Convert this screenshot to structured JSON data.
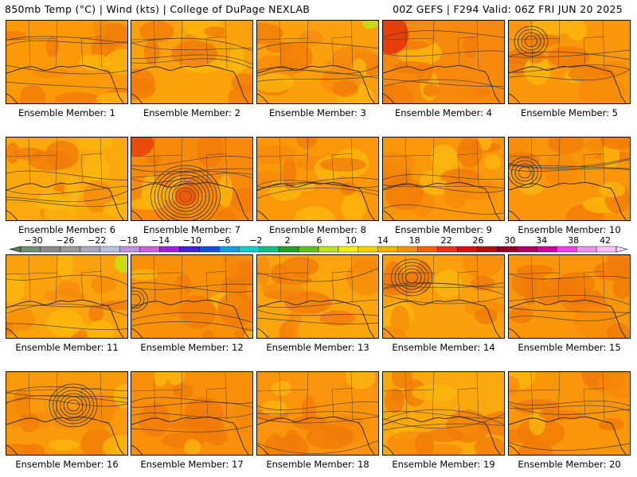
{
  "header": {
    "left": "850mb Temp (°C) | Wind (kts) | College of DuPage NEXLAB",
    "right": "00Z GEFS | F294 Valid: 06Z FRI JUN 20 2025"
  },
  "members": [
    {
      "label": "Ensemble Member: 1",
      "base": "#fb9a06",
      "low": null
    },
    {
      "label": "Ensemble Member: 2",
      "base": "#fba20a",
      "low": null
    },
    {
      "label": "Ensemble Member: 3",
      "base": "#fba00c",
      "low": null
    },
    {
      "label": "Ensemble Member: 4",
      "base": "#f78a0c",
      "low": null
    },
    {
      "label": "Ensemble Member: 5",
      "base": "#fa960a",
      "low": "north"
    },
    {
      "label": "Ensemble Member: 6",
      "base": "#fba80c",
      "low": null
    },
    {
      "label": "Ensemble Member: 7",
      "base": "#f88a0a",
      "low": "deep"
    },
    {
      "label": "Ensemble Member: 8",
      "base": "#fb9808",
      "low": null
    },
    {
      "label": "Ensemble Member: 9",
      "base": "#fa980a",
      "low": null
    },
    {
      "label": "Ensemble Member: 10",
      "base": "#fa960a",
      "low": "west"
    },
    {
      "label": "Ensemble Member: 11",
      "base": "#fba20c",
      "low": null
    },
    {
      "label": "Ensemble Member: 12",
      "base": "#f89008",
      "low": "edge"
    },
    {
      "label": "Ensemble Member: 13",
      "base": "#fba40c",
      "low": null
    },
    {
      "label": "Ensemble Member: 14",
      "base": "#fba00a",
      "low": "center"
    },
    {
      "label": "Ensemble Member: 15",
      "base": "#fa960a",
      "low": null
    },
    {
      "label": "Ensemble Member: 16",
      "base": "#fa9a0a",
      "low": "deep-west"
    },
    {
      "label": "Ensemble Member: 17",
      "base": "#f98e08",
      "low": null
    },
    {
      "label": "Ensemble Member: 18",
      "base": "#fa940a",
      "low": null
    },
    {
      "label": "Ensemble Member: 19",
      "base": "#fba80c",
      "low": null
    },
    {
      "label": "Ensemble Member: 20",
      "base": "#fa960a",
      "low": null
    }
  ],
  "colorbar": {
    "ticks": [
      "−30",
      "−26",
      "−22",
      "−18",
      "−14",
      "−10",
      "−6",
      "−2",
      "2",
      "6",
      "10",
      "14",
      "18",
      "22",
      "26",
      "30",
      "34",
      "38",
      "42"
    ],
    "colors": [
      "#6f8f6f",
      "#8a8a8a",
      "#9a9a9a",
      "#a8a8b8",
      "#b8c0e0",
      "#c090e0",
      "#d060e0",
      "#a020e0",
      "#4020e0",
      "#1050e0",
      "#10a0e0",
      "#10d0d0",
      "#10c080",
      "#20a020",
      "#60c020",
      "#c0e020",
      "#f0f000",
      "#f8d000",
      "#f8b000",
      "#f89000",
      "#f86000",
      "#f03010",
      "#d81010",
      "#b01010",
      "#900020",
      "#b00060",
      "#d000a0",
      "#f040f0",
      "#f090f0",
      "#ffc0ff"
    ]
  }
}
